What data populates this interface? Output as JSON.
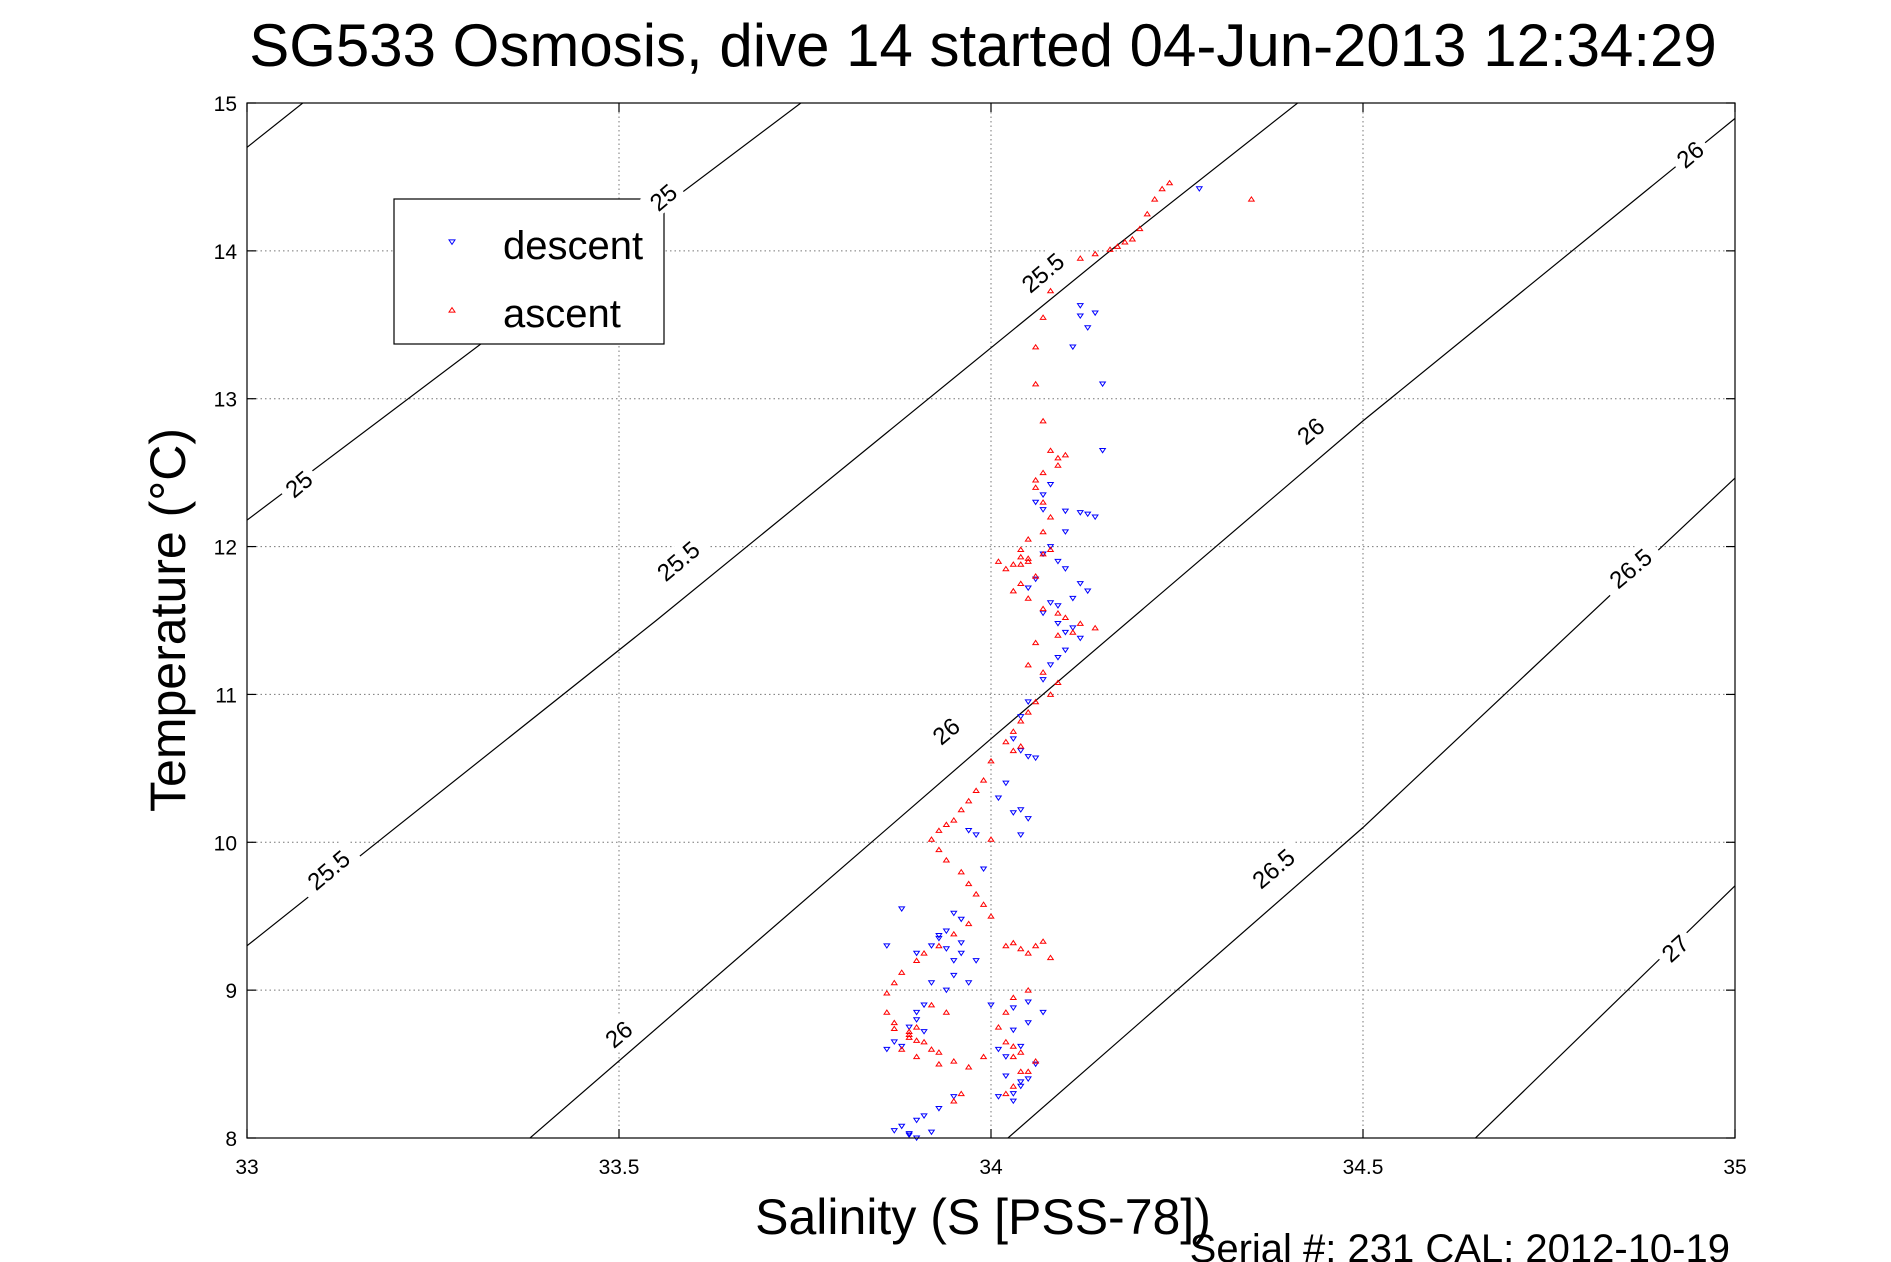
{
  "chart_data": {
    "type": "scatter",
    "title": "SG533 Osmosis, dive 14 started 04-Jun-2013 12:34:29",
    "xlabel": "Salinity (S [PSS-78])",
    "ylabel": "Temperature (°C)",
    "xlim": [
      33,
      35
    ],
    "ylim": [
      8,
      15
    ],
    "xticks": [
      33,
      33.5,
      34,
      34.5,
      35
    ],
    "xtick_labels": [
      "33",
      "33.5",
      "34",
      "34.5",
      "35"
    ],
    "yticks": [
      8,
      9,
      10,
      11,
      12,
      13,
      14,
      15
    ],
    "ytick_labels": [
      "8",
      "9",
      "10",
      "11",
      "12",
      "13",
      "14",
      "15"
    ],
    "grid": true,
    "legend": {
      "location": "top-left",
      "entries": [
        "descent",
        "ascent"
      ]
    },
    "footer": "Serial #: 231  CAL: 2012-10-19",
    "contours": [
      {
        "label": "25",
        "points": [
          [
            33.0,
            14.68
          ],
          [
            33.09,
            15.0
          ]
        ],
        "label_at": [
          33.56,
          14.36
        ]
      },
      {
        "label": "25",
        "points": [
          [
            33.0,
            12.16
          ],
          [
            33.75,
            15.0
          ]
        ],
        "label_at": [
          33.07,
          12.42
        ]
      },
      {
        "label": "25.5",
        "points": [
          [
            33.0,
            9.33
          ],
          [
            34.16,
            14.0
          ],
          [
            34.42,
            15.0
          ]
        ],
        "label_at": [
          34.07,
          13.85
        ]
      },
      {
        "label": "25.5",
        "points": [
          [
            33.0,
            9.33
          ],
          [
            33.55,
            11.55
          ],
          [
            34.16,
            14.0
          ]
        ],
        "label_at": [
          33.58,
          11.9
        ]
      },
      {
        "label": "25.5",
        "points": [
          [
            33.0,
            9.33
          ]
        ],
        "label_at": [
          33.11,
          9.81
        ]
      },
      {
        "label": "26",
        "points": [
          [
            33.38,
            8.0
          ],
          [
            35.0,
            14.88
          ]
        ],
        "label_at": [
          34.94,
          14.65
        ]
      },
      {
        "label": "26",
        "points": [
          [
            33.38,
            8.0
          ],
          [
            35.0,
            14.88
          ]
        ],
        "label_at": [
          34.43,
          12.78
        ]
      },
      {
        "label": "26",
        "points": [
          [
            33.38,
            8.0
          ],
          [
            35.0,
            14.88
          ]
        ],
        "label_at": [
          33.94,
          10.75
        ]
      },
      {
        "label": "26",
        "points": [
          [
            33.38,
            8.0
          ],
          [
            35.0,
            14.88
          ]
        ],
        "label_at": [
          33.5,
          8.7
        ]
      },
      {
        "label": "26.5",
        "points": [
          [
            34.02,
            8.0
          ],
          [
            35.0,
            12.45
          ]
        ],
        "label_at": [
          34.86,
          11.85
        ]
      },
      {
        "label": "26.5",
        "points": [
          [
            34.02,
            8.0
          ],
          [
            35.0,
            12.45
          ]
        ],
        "label_at": [
          34.38,
          9.82
        ]
      },
      {
        "label": "27",
        "points": [
          [
            34.65,
            8.0
          ],
          [
            35.0,
            9.72
          ]
        ],
        "label_at": [
          34.92,
          9.28
        ]
      }
    ],
    "series": [
      {
        "name": "descent",
        "marker": "triangle-down",
        "color": "#0000ff",
        "x": [
          34.28,
          34.12,
          34.13,
          34.11,
          34.12,
          34.14,
          34.15,
          34.15,
          34.07,
          34.06,
          34.07,
          34.08,
          34.1,
          34.12,
          34.13,
          34.14,
          34.1,
          34.08,
          34.07,
          34.09,
          34.1,
          34.12,
          34.13,
          34.11,
          34.09,
          34.08,
          34.06,
          34.05,
          34.07,
          34.09,
          34.1,
          34.11,
          34.12,
          34.1,
          34.09,
          34.08,
          34.07,
          34.05,
          34.04,
          34.03,
          34.04,
          34.05,
          34.06,
          34.02,
          34.01,
          34.03,
          34.04,
          34.05,
          34.04,
          33.98,
          33.97,
          33.99,
          33.95,
          33.94,
          33.96,
          33.93,
          33.95,
          33.92,
          33.9,
          33.91,
          33.88,
          33.86,
          33.87,
          33.89,
          33.9,
          33.94,
          33.95,
          33.96,
          33.98,
          33.97,
          34.0,
          34.03,
          34.05,
          34.07,
          34.05,
          34.03,
          34.01,
          34.02,
          34.04,
          34.06,
          34.02,
          34.04,
          34.05,
          34.03,
          34.01,
          34.03,
          34.04,
          33.95,
          33.93,
          33.91,
          33.9,
          33.88,
          33.87,
          33.89,
          33.92,
          33.91,
          33.93,
          33.88,
          33.86,
          33.9,
          33.92,
          33.94,
          33.96,
          33.9,
          33.89
        ],
        "y": [
          14.42,
          13.63,
          13.48,
          13.35,
          13.56,
          13.58,
          13.1,
          12.65,
          12.35,
          12.3,
          12.25,
          12.42,
          12.24,
          12.23,
          12.22,
          12.2,
          12.1,
          12.0,
          11.95,
          11.9,
          11.85,
          11.75,
          11.7,
          11.65,
          11.6,
          11.62,
          11.78,
          11.72,
          11.55,
          11.48,
          11.42,
          11.45,
          11.38,
          11.3,
          11.25,
          11.2,
          11.1,
          10.95,
          10.85,
          10.7,
          10.62,
          10.58,
          10.57,
          10.4,
          10.3,
          10.2,
          10.22,
          10.16,
          10.05,
          10.05,
          10.08,
          9.82,
          9.52,
          9.4,
          9.48,
          9.37,
          9.2,
          9.05,
          8.8,
          8.72,
          8.62,
          8.6,
          8.65,
          8.75,
          8.85,
          9.0,
          9.1,
          9.25,
          9.2,
          9.05,
          8.9,
          8.88,
          8.92,
          8.85,
          8.78,
          8.73,
          8.6,
          8.55,
          8.62,
          8.5,
          8.42,
          8.38,
          8.4,
          8.3,
          8.28,
          8.25,
          8.35,
          8.28,
          8.2,
          8.15,
          8.12,
          8.08,
          8.05,
          8.02,
          8.04,
          8.9,
          9.35,
          9.55,
          9.3,
          9.25,
          9.3,
          9.28,
          9.32,
          8.0,
          8.03
        ]
      },
      {
        "name": "ascent",
        "marker": "triangle-up",
        "color": "#ff0000",
        "x": [
          34.35,
          34.24,
          34.23,
          34.22,
          34.21,
          34.2,
          34.19,
          34.18,
          34.17,
          34.16,
          34.14,
          34.12,
          34.1,
          34.09,
          34.08,
          34.07,
          34.06,
          34.06,
          34.07,
          34.08,
          34.09,
          34.09,
          34.1,
          34.07,
          34.06,
          34.06,
          34.07,
          34.08,
          34.07,
          34.05,
          34.04,
          34.04,
          34.05,
          34.04,
          34.02,
          34.01,
          34.03,
          34.05,
          34.07,
          34.08,
          34.06,
          34.04,
          34.03,
          34.05,
          34.07,
          34.09,
          34.1,
          34.12,
          34.14,
          34.11,
          34.09,
          34.06,
          34.05,
          34.07,
          34.09,
          34.08,
          34.06,
          34.05,
          34.04,
          34.03,
          34.02,
          34.03,
          34.04,
          34.0,
          33.99,
          33.98,
          33.97,
          33.96,
          33.95,
          33.94,
          33.93,
          33.92,
          33.93,
          33.94,
          33.96,
          33.97,
          33.98,
          33.99,
          34.0,
          33.97,
          33.95,
          33.93,
          33.91,
          33.9,
          33.88,
          33.87,
          33.86,
          33.86,
          33.87,
          33.89,
          33.9,
          33.92,
          33.93,
          33.91,
          33.89,
          33.87,
          34.02,
          34.03,
          34.04,
          34.05,
          34.06,
          34.07,
          34.08,
          34.05,
          34.03,
          34.02,
          34.01,
          34.02,
          34.03,
          34.04,
          34.03,
          34.02,
          33.94,
          33.92,
          33.9,
          33.89,
          33.88,
          33.9,
          33.93,
          33.95,
          33.97,
          33.99,
          34.03,
          34.04,
          34.06,
          34.05,
          33.96,
          33.95,
          34.0
        ],
        "y": [
          14.35,
          14.46,
          14.42,
          14.35,
          14.25,
          14.15,
          14.08,
          14.06,
          14.03,
          14.01,
          13.98,
          13.95,
          13.92,
          13.88,
          13.73,
          13.55,
          13.35,
          13.1,
          12.85,
          12.65,
          12.6,
          12.55,
          12.62,
          12.5,
          12.45,
          12.4,
          12.3,
          12.2,
          12.1,
          12.05,
          11.98,
          11.93,
          11.9,
          11.88,
          11.85,
          11.9,
          11.88,
          11.92,
          11.95,
          11.98,
          11.8,
          11.75,
          11.7,
          11.65,
          11.58,
          11.55,
          11.52,
          11.48,
          11.45,
          11.42,
          11.4,
          11.35,
          11.2,
          11.15,
          11.08,
          11.0,
          10.95,
          10.88,
          10.82,
          10.75,
          10.68,
          10.62,
          10.65,
          10.55,
          10.42,
          10.35,
          10.28,
          10.22,
          10.15,
          10.12,
          10.08,
          10.02,
          9.95,
          9.88,
          9.8,
          9.72,
          9.65,
          9.58,
          9.5,
          9.45,
          9.38,
          9.3,
          9.25,
          9.2,
          9.12,
          9.05,
          8.98,
          8.85,
          8.78,
          8.72,
          8.66,
          8.6,
          8.58,
          8.65,
          8.7,
          8.74,
          9.3,
          9.32,
          9.28,
          9.25,
          9.3,
          9.33,
          9.22,
          9.0,
          8.95,
          8.85,
          8.75,
          8.65,
          8.55,
          8.45,
          8.35,
          8.3,
          8.85,
          8.9,
          8.75,
          8.68,
          8.6,
          8.55,
          8.5,
          8.52,
          8.48,
          8.55,
          8.62,
          8.58,
          8.52,
          8.45,
          8.3,
          8.25,
          10.02
        ]
      }
    ]
  }
}
